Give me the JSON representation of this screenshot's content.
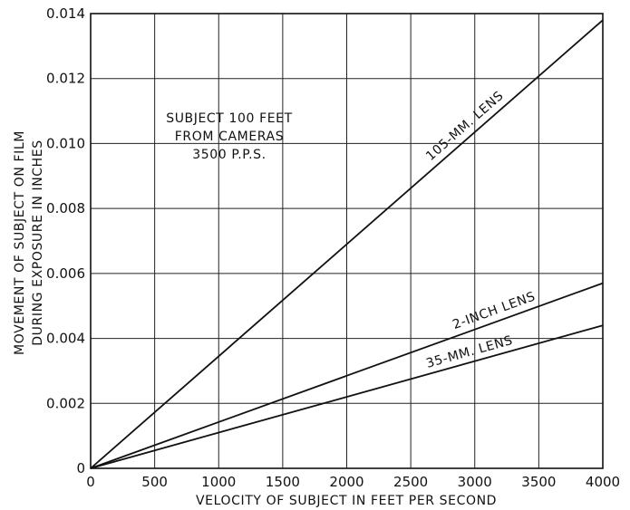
{
  "chart_data": {
    "type": "line",
    "xlabel": "VELOCITY OF SUBJECT IN FEET PER SECOND",
    "ylabel": [
      "MOVEMENT OF SUBJECT ON FILM",
      "DURING EXPOSURE IN INCHES"
    ],
    "xlim": [
      0,
      4000
    ],
    "ylim": [
      0,
      0.014
    ],
    "x_ticks": [
      0,
      500,
      1000,
      1500,
      2000,
      2500,
      3000,
      3500,
      4000
    ],
    "x_tick_labels": [
      "0",
      "500",
      "1000",
      "1500",
      "2000",
      "2500",
      "3000",
      "3500",
      "4000"
    ],
    "y_ticks": [
      0,
      0.002,
      0.004,
      0.006,
      0.008,
      0.01,
      0.012,
      0.014
    ],
    "y_tick_labels": [
      "0",
      "0.002",
      "0.004",
      "0.006",
      "0.008",
      "0.010",
      "0.012",
      "0.014"
    ],
    "grid": true,
    "series": [
      {
        "name": "105-MM. LENS",
        "x": [
          0,
          4000
        ],
        "y": [
          0,
          0.0138
        ]
      },
      {
        "name": "2-INCH LENS",
        "x": [
          0,
          4000
        ],
        "y": [
          0,
          0.0057
        ]
      },
      {
        "name": "35-MM. LENS",
        "x": [
          0,
          4000
        ],
        "y": [
          0,
          0.0044
        ]
      }
    ],
    "annotation": [
      "SUBJECT 100 FEET",
      "FROM CAMERAS",
      "3500 P.P.S."
    ]
  },
  "colors": {
    "line": "#111111",
    "grid": "#222222",
    "background": "#ffffff"
  }
}
